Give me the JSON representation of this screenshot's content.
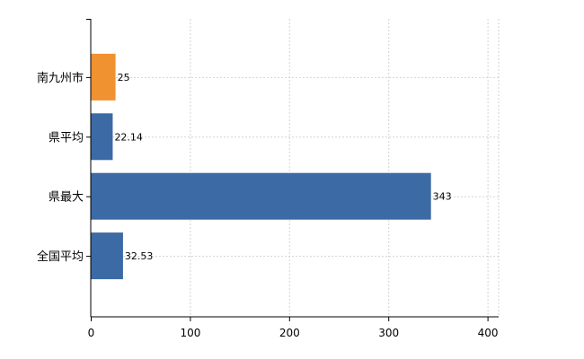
{
  "chart_data": {
    "type": "bar",
    "orientation": "horizontal",
    "categories": [
      "南九州市",
      "県平均",
      "県最大",
      "全国平均"
    ],
    "values": [
      25,
      22.14,
      343,
      32.53
    ],
    "data_labels": [
      "25",
      "22.14",
      "343",
      "32.53"
    ],
    "bar_colors": [
      "#f0922f",
      "#3b6aa5",
      "#3b6aa5",
      "#3b6aa5"
    ],
    "xlim": [
      0,
      410
    ],
    "xticks": [
      0,
      100,
      200,
      300,
      400
    ],
    "xtick_labels": [
      "0",
      "100",
      "200",
      "300",
      "400"
    ],
    "grid": "vertical and horizontal dotted",
    "title": "",
    "xlabel": "",
    "ylabel": ""
  }
}
